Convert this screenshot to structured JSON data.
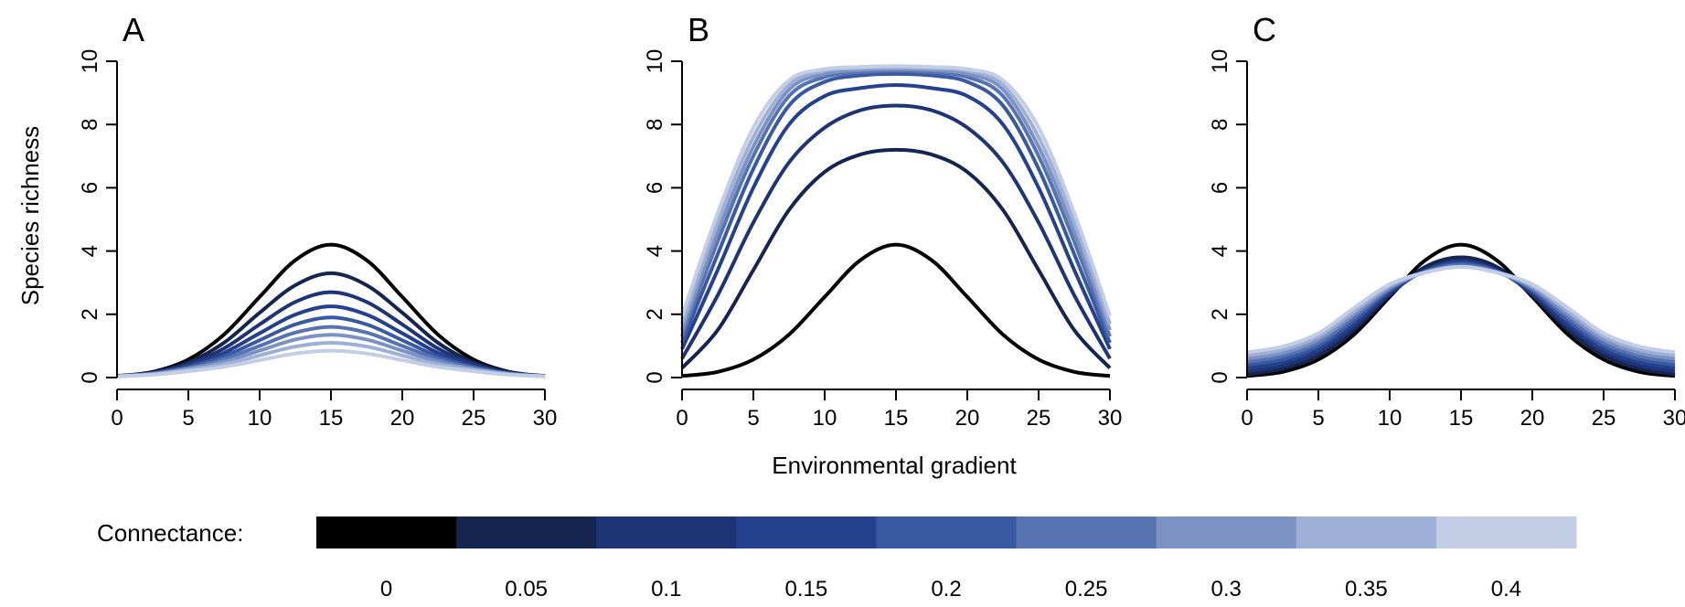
{
  "chart_data": {
    "type": "line",
    "ylabel": "Species richness",
    "xlabel": "Environmental gradient",
    "xlim": [
      0,
      30
    ],
    "ylim": [
      0,
      10
    ],
    "xticks": [
      "0",
      "5",
      "10",
      "15",
      "20",
      "25",
      "30"
    ],
    "yticks": [
      "0",
      "2",
      "4",
      "6",
      "8",
      "10"
    ],
    "x": [
      0,
      2.5,
      5,
      7.5,
      10,
      12.5,
      15,
      17.5,
      20,
      22.5,
      25,
      27.5,
      30
    ],
    "legend": {
      "title": "Connectance:",
      "labels": [
        "0",
        "0.05",
        "0.1",
        "0.15",
        "0.2",
        "0.25",
        "0.3",
        "0.35",
        "0.4"
      ],
      "colors": [
        "#000000",
        "#15254f",
        "#1f3474",
        "#24408e",
        "#3a59a3",
        "#5873b1",
        "#7b92c3",
        "#9eb0d5",
        "#c3cde6"
      ]
    },
    "panels": [
      {
        "title": "A",
        "series": [
          {
            "name": "0",
            "values": [
              0.05,
              0.18,
              0.57,
              1.36,
              2.55,
              3.71,
              4.2,
              3.71,
              2.55,
              1.36,
              0.57,
              0.18,
              0.05
            ]
          },
          {
            "name": "0.05",
            "values": [
              0.04,
              0.16,
              0.48,
              1.1,
              2.05,
              2.92,
              3.3,
              2.92,
              2.05,
              1.1,
              0.48,
              0.16,
              0.04
            ]
          },
          {
            "name": "0.1",
            "values": [
              0.04,
              0.15,
              0.42,
              0.92,
              1.68,
              2.39,
              2.7,
              2.39,
              1.68,
              0.92,
              0.42,
              0.15,
              0.04
            ]
          },
          {
            "name": "0.15",
            "values": [
              0.04,
              0.14,
              0.37,
              0.78,
              1.4,
              1.99,
              2.25,
              1.99,
              1.4,
              0.78,
              0.37,
              0.14,
              0.04
            ]
          },
          {
            "name": "0.2",
            "values": [
              0.04,
              0.13,
              0.33,
              0.67,
              1.18,
              1.68,
              1.9,
              1.68,
              1.18,
              0.67,
              0.33,
              0.13,
              0.04
            ]
          },
          {
            "name": "0.25",
            "values": [
              0.04,
              0.12,
              0.3,
              0.58,
              1.0,
              1.42,
              1.6,
              1.42,
              1.0,
              0.58,
              0.3,
              0.12,
              0.04
            ]
          },
          {
            "name": "0.3",
            "values": [
              0.04,
              0.11,
              0.27,
              0.5,
              0.85,
              1.2,
              1.35,
              1.2,
              0.85,
              0.5,
              0.27,
              0.11,
              0.04
            ]
          },
          {
            "name": "0.35",
            "values": [
              0.04,
              0.1,
              0.24,
              0.42,
              0.7,
              0.98,
              1.1,
              0.98,
              0.7,
              0.42,
              0.24,
              0.1,
              0.04
            ]
          },
          {
            "name": "0.4",
            "values": [
              0.04,
              0.09,
              0.2,
              0.34,
              0.55,
              0.76,
              0.85,
              0.76,
              0.55,
              0.34,
              0.2,
              0.09,
              0.04
            ]
          }
        ]
      },
      {
        "title": "B",
        "series": [
          {
            "name": "0",
            "values": [
              0.05,
              0.18,
              0.57,
              1.36,
              2.55,
              3.71,
              4.2,
              3.71,
              2.55,
              1.36,
              0.57,
              0.18,
              0.05
            ]
          },
          {
            "name": "0.05",
            "values": [
              0.3,
              1.5,
              3.4,
              5.3,
              6.5,
              7.05,
              7.2,
              7.05,
              6.5,
              5.3,
              3.4,
              1.5,
              0.3
            ]
          },
          {
            "name": "0.1",
            "values": [
              0.6,
              2.6,
              4.9,
              6.8,
              7.9,
              8.45,
              8.6,
              8.45,
              7.9,
              6.8,
              4.9,
              2.6,
              0.6
            ]
          },
          {
            "name": "0.15",
            "values": [
              0.9,
              3.4,
              6.0,
              8.0,
              8.9,
              9.15,
              9.25,
              9.15,
              8.9,
              8.0,
              6.0,
              3.4,
              0.9
            ]
          },
          {
            "name": "0.2",
            "values": [
              1.1,
              3.9,
              6.6,
              8.6,
              9.35,
              9.55,
              9.6,
              9.55,
              9.35,
              8.6,
              6.6,
              3.9,
              1.1
            ]
          },
          {
            "name": "0.25",
            "values": [
              1.3,
              4.3,
              7.0,
              8.9,
              9.5,
              9.65,
              9.7,
              9.65,
              9.5,
              8.9,
              7.0,
              4.3,
              1.3
            ]
          },
          {
            "name": "0.3",
            "values": [
              1.5,
              4.6,
              7.3,
              9.1,
              9.6,
              9.72,
              9.75,
              9.72,
              9.6,
              9.1,
              7.3,
              4.6,
              1.5
            ]
          },
          {
            "name": "0.35",
            "values": [
              1.7,
              4.9,
              7.6,
              9.25,
              9.7,
              9.78,
              9.8,
              9.78,
              9.7,
              9.25,
              7.6,
              4.9,
              1.7
            ]
          },
          {
            "name": "0.4",
            "values": [
              1.95,
              5.2,
              7.9,
              9.4,
              9.75,
              9.82,
              9.85,
              9.82,
              9.75,
              9.4,
              7.9,
              5.2,
              1.95
            ]
          }
        ]
      },
      {
        "title": "C",
        "series": [
          {
            "name": "0",
            "values": [
              0.05,
              0.18,
              0.57,
              1.36,
              2.55,
              3.71,
              4.2,
              3.71,
              2.55,
              1.36,
              0.57,
              0.18,
              0.05
            ]
          },
          {
            "name": "0.05",
            "values": [
              0.1,
              0.28,
              0.7,
              1.5,
              2.6,
              3.5,
              3.8,
              3.5,
              2.6,
              1.5,
              0.7,
              0.28,
              0.1
            ]
          },
          {
            "name": "0.1",
            "values": [
              0.2,
              0.38,
              0.8,
              1.6,
              2.65,
              3.4,
              3.7,
              3.4,
              2.65,
              1.6,
              0.8,
              0.38,
              0.2
            ]
          },
          {
            "name": "0.15",
            "values": [
              0.3,
              0.48,
              0.9,
              1.7,
              2.7,
              3.38,
              3.65,
              3.38,
              2.7,
              1.7,
              0.9,
              0.48,
              0.3
            ]
          },
          {
            "name": "0.2",
            "values": [
              0.4,
              0.58,
              1.0,
              1.8,
              2.75,
              3.36,
              3.6,
              3.36,
              2.75,
              1.8,
              1.0,
              0.58,
              0.4
            ]
          },
          {
            "name": "0.25",
            "values": [
              0.5,
              0.68,
              1.1,
              1.9,
              2.8,
              3.34,
              3.55,
              3.34,
              2.8,
              1.9,
              1.1,
              0.68,
              0.5
            ]
          },
          {
            "name": "0.3",
            "values": [
              0.6,
              0.78,
              1.2,
              2.0,
              2.85,
              3.33,
              3.5,
              3.33,
              2.85,
              2.0,
              1.2,
              0.78,
              0.6
            ]
          },
          {
            "name": "0.35",
            "values": [
              0.7,
              0.88,
              1.3,
              2.1,
              2.9,
              3.32,
              3.5,
              3.32,
              2.9,
              2.1,
              1.3,
              0.88,
              0.7
            ]
          },
          {
            "name": "0.4",
            "values": [
              0.8,
              0.98,
              1.4,
              2.2,
              2.95,
              3.32,
              3.5,
              3.32,
              2.95,
              2.2,
              1.4,
              0.98,
              0.8
            ]
          }
        ]
      }
    ]
  }
}
